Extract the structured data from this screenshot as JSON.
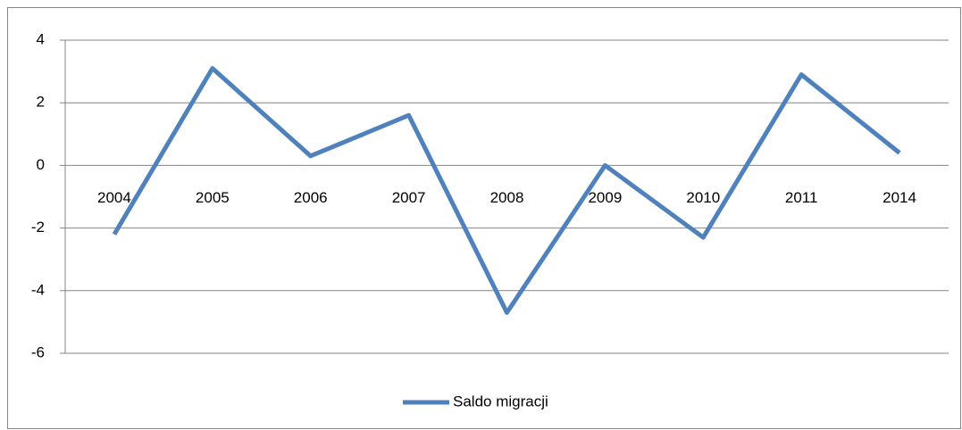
{
  "chart_data": {
    "type": "line",
    "categories": [
      "2004",
      "2005",
      "2006",
      "2007",
      "2008",
      "2009",
      "2010",
      "2011",
      "2014"
    ],
    "series": [
      {
        "name": "Saldo migracji",
        "color": "#4f81bd",
        "values": [
          -2.2,
          3.1,
          0.3,
          1.6,
          -4.7,
          0.0,
          -2.3,
          2.9,
          0.4
        ]
      }
    ],
    "ylim": [
      -6,
      4
    ],
    "yticks": [
      -6,
      -4,
      -2,
      0,
      2,
      4
    ],
    "grid": true,
    "legend": "bottom"
  }
}
